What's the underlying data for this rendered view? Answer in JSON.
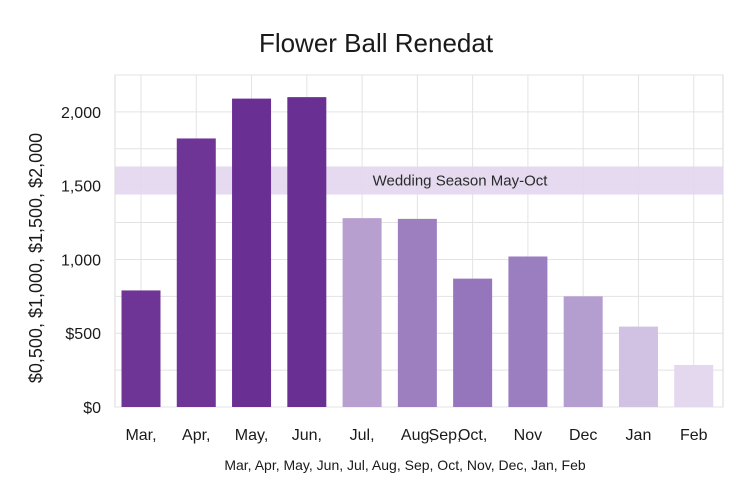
{
  "chart_data": {
    "type": "bar",
    "title": "Flower Ball Renedat",
    "xlabel": "Mar, Apr, May, Jun, Jul, Aug, Sep, Oct, Nov, Dec, Jan, Feb",
    "ylabel": "$0,500, $1,000, $1,500, $2,000",
    "categories": [
      "Mar,",
      "Apr,",
      "May,",
      "Jun,",
      "Jul,",
      "Aug,",
      "Oct,",
      "Nov",
      "Dec",
      "Jan",
      "Feb"
    ],
    "category_label_extra": "Sep,",
    "values": [
      790,
      1820,
      2090,
      2100,
      1280,
      1275,
      870,
      1020,
      750,
      545,
      285
    ],
    "colors": [
      "#6f3596",
      "#6f3596",
      "#6a2f92",
      "#6a2f92",
      "#b7a0cf",
      "#9d7fc0",
      "#9575bc",
      "#9a7ec0",
      "#b49ecf",
      "#d1c1e3",
      "#e3d8ee"
    ],
    "yticks": [
      0,
      500,
      1000,
      1500,
      2000
    ],
    "ytick_labels": [
      "$0",
      "$500",
      "1,000",
      "1,500",
      "2,000"
    ],
    "ylim": [
      0,
      2250
    ],
    "grid": true,
    "annotation_band": {
      "label": "Wedding Season May-Oct",
      "y_from": 1440,
      "y_to": 1630,
      "color": "#e2d6ee"
    }
  }
}
